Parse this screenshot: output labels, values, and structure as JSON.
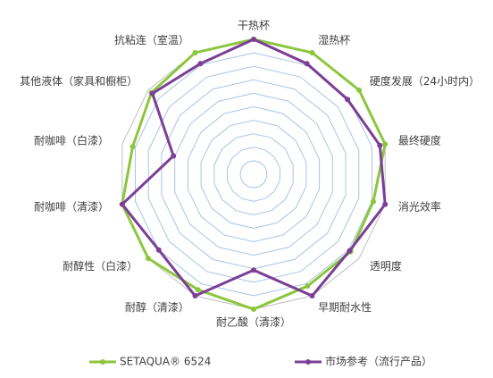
{
  "chart_data": {
    "type": "radar",
    "categories": [
      "干热杯",
      "湿热杯",
      "硬度发展（24小时内）",
      "最终硬度",
      "消光效率",
      "透明度",
      "早期耐水性",
      "耐乙酸（清漆）",
      "耐醇（清漆）",
      "耐醇性（白漆）",
      "耐咖啡（清漆）",
      "耐咖啡（白漆）",
      "其他液体（家具和橱柜）",
      "抗粘连（室温）"
    ],
    "series": [
      {
        "name": "SETAQUA® 6524",
        "color": "#8cc63e",
        "values": [
          10,
          10,
          10,
          10,
          9.1,
          9.2,
          9.2,
          10,
          9.5,
          10,
          10,
          9.2,
          9.7,
          10
        ]
      },
      {
        "name": "市场参考（流行产品）",
        "color": "#7b3f96",
        "values": [
          10,
          9.1,
          8.9,
          9.6,
          10,
          9.1,
          10,
          7.1,
          10,
          9,
          10,
          6.1,
          9.6,
          9.1
        ]
      }
    ],
    "ylim": [
      0,
      10
    ],
    "yticks": [
      1,
      2,
      3,
      4,
      5,
      6,
      7,
      8,
      9,
      10
    ],
    "grid": true,
    "legend": "bottom"
  }
}
